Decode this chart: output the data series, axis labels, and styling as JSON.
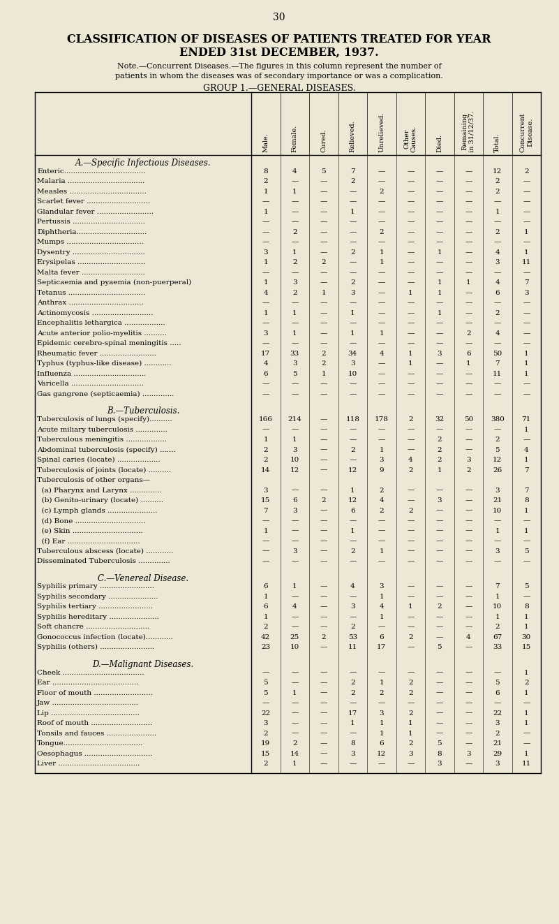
{
  "page_number": "30",
  "title_line1": "CLASSIFICATION OF DISEASES OF PATIENTS TREATED FOR YEAR",
  "title_line2": "ENDED 31st DECEMBER, 1937.",
  "note_line1": "Note.—Concurrent Diseases.—The figures in this column represent the number of",
  "note_line2": "patients in whom the diseases was of secondary importance or was a complication.",
  "group_header": "GROUP 1.—GENERAL DISEASES.",
  "columns": [
    "Male.",
    "Female.",
    "Cured.",
    "Relieved.",
    "Unrelieved.",
    "Other\nCauses.",
    "Died.",
    "Remaining\nin 31/12/37.",
    "Total.",
    "Concurrent\nDisease."
  ],
  "sections": [
    {
      "header": "A.—Specific Infectious Diseases.",
      "header_italic": true,
      "rows": [
        {
          "label": "Enteric....................................",
          "data": [
            "8",
            "4",
            "5",
            "7",
            "—",
            "—",
            "—",
            "—",
            "12",
            "2"
          ]
        },
        {
          "label": "Malaria ..................................",
          "data": [
            "2",
            "—",
            "—",
            "2",
            "—",
            "—",
            "—",
            "—",
            "2",
            "—"
          ]
        },
        {
          "label": "Measles ..................................",
          "data": [
            "1",
            "1",
            "—",
            "—",
            "2",
            "—",
            "—",
            "—",
            "2",
            "—"
          ]
        },
        {
          "label": "Scarlet fever ............................",
          "data": [
            "—",
            "—",
            "—",
            "—",
            "—",
            "—",
            "—",
            "—",
            "—",
            "—"
          ]
        },
        {
          "label": "Glandular fever .........................",
          "data": [
            "1",
            "—",
            "—",
            "1",
            "—",
            "—",
            "—",
            "—",
            "1",
            "—"
          ]
        },
        {
          "label": "Pertussis ................................",
          "data": [
            "—",
            "—",
            "—",
            "—",
            "—",
            "—",
            "—",
            "—",
            "—",
            "—"
          ]
        },
        {
          "label": "Diphtheria...............................",
          "data": [
            "—",
            "2",
            "—",
            "—",
            "2",
            "—",
            "—",
            "—",
            "2",
            "1"
          ]
        },
        {
          "label": "Mumps ..................................",
          "data": [
            "—",
            "—",
            "—",
            "—",
            "—",
            "—",
            "—",
            "—",
            "—",
            "—"
          ]
        },
        {
          "label": "Dysentry ................................",
          "data": [
            "3",
            "1",
            "—",
            "2",
            "1",
            "—",
            "1",
            "—",
            "4",
            "1"
          ]
        },
        {
          "label": "Erysipelas ..............................",
          "data": [
            "1",
            "2",
            "2",
            "—",
            "1",
            "—",
            "—",
            "—",
            "3",
            "11"
          ]
        },
        {
          "label": "Malta fever ............................",
          "data": [
            "—",
            "—",
            "—",
            "—",
            "—",
            "—",
            "—",
            "—",
            "—",
            "—"
          ]
        },
        {
          "label": "Septicaemia and pyaemia (non-puerperal)",
          "data": [
            "1",
            "3",
            "—",
            "2",
            "—",
            "—",
            "1",
            "1",
            "4",
            "7"
          ]
        },
        {
          "label": "Tetanus ..................................",
          "data": [
            "4",
            "2",
            "1",
            "3",
            "—",
            "1",
            "1",
            "—",
            "6",
            "3"
          ]
        },
        {
          "label": "Anthrax .................................",
          "data": [
            "—",
            "—",
            "—",
            "—",
            "—",
            "—",
            "—",
            "—",
            "—",
            "—"
          ]
        },
        {
          "label": "Actinomycosis ...........................",
          "data": [
            "1",
            "1",
            "—",
            "1",
            "—",
            "—",
            "1",
            "—",
            "2",
            "—"
          ]
        },
        {
          "label": "Encephalitis lethargica ..................",
          "data": [
            "—",
            "—",
            "—",
            "—",
            "—",
            "—",
            "—",
            "—",
            "—",
            "—"
          ]
        },
        {
          "label": "Acute anterior polio-myelitis ..........",
          "data": [
            "3",
            "1",
            "—",
            "1",
            "1",
            "—",
            "—",
            "2",
            "4",
            "—"
          ]
        },
        {
          "label": "Epidemic cerebro-spinal meningitis .....",
          "data": [
            "—",
            "—",
            "—",
            "—",
            "—",
            "—",
            "—",
            "—",
            "—",
            "—"
          ]
        },
        {
          "label": "Rheumatic fever .........................",
          "data": [
            "17",
            "33",
            "2",
            "34",
            "4",
            "1",
            "3",
            "6",
            "50",
            "1"
          ]
        },
        {
          "label": "Typhus (typhus-like disease) ............",
          "data": [
            "4",
            "3",
            "2",
            "3",
            "—",
            "1",
            "—",
            "1",
            "7",
            "1"
          ]
        },
        {
          "label": "Influenza ................................",
          "data": [
            "6",
            "5",
            "1",
            "10",
            "—",
            "—",
            "—",
            "—",
            "11",
            "1"
          ]
        },
        {
          "label": "Varicella ................................",
          "data": [
            "—",
            "—",
            "—",
            "—",
            "—",
            "—",
            "—",
            "—",
            "—",
            "—"
          ]
        },
        {
          "label": "Gas gangrene (septicaemia) ..............",
          "data": [
            "—",
            "—",
            "—",
            "—",
            "—",
            "—",
            "—",
            "—",
            "—",
            "—"
          ]
        }
      ]
    },
    {
      "header": "B.—Tuberculosis.",
      "header_italic": true,
      "rows": [
        {
          "label": "Tuberculosis of lungs (specify)..........",
          "data": [
            "166",
            "214",
            "—",
            "118",
            "178",
            "2",
            "32",
            "50",
            "380",
            "71"
          ]
        },
        {
          "label": "Acute miliary tuberculosis ..............",
          "data": [
            "—",
            "—",
            "—",
            "—",
            "—",
            "—",
            "—",
            "—",
            "—",
            "1"
          ]
        },
        {
          "label": "Tuberculous meningitis ..................",
          "data": [
            "1",
            "1",
            "—",
            "—",
            "—",
            "—",
            "2",
            "—",
            "2",
            "—"
          ]
        },
        {
          "label": "Abdominal tuberculosis (specify) .......",
          "data": [
            "2",
            "3",
            "—",
            "2",
            "1",
            "—",
            "2",
            "—",
            "5",
            "4"
          ]
        },
        {
          "label": "Spinal caries (locate) ...................",
          "data": [
            "2",
            "10",
            "—",
            "—",
            "3",
            "4",
            "2",
            "3",
            "12",
            "1"
          ]
        },
        {
          "label": "Tuberculosis of joints (locate) ..........",
          "data": [
            "14",
            "12",
            "—",
            "12",
            "9",
            "2",
            "1",
            "2",
            "26",
            "7"
          ]
        },
        {
          "label": "Tuberculosis of other organs—",
          "data": [
            "",
            "",
            "",
            "",
            "",
            "",
            "",
            "",
            "",
            ""
          ]
        },
        {
          "label": "  (a) Pharynx and Larynx ..............",
          "data": [
            "3",
            "—",
            "—",
            "1",
            "2",
            "—",
            "—",
            "—",
            "3",
            "7"
          ]
        },
        {
          "label": "  (b) Genito-urinary (locate) ..........",
          "data": [
            "15",
            "6",
            "2",
            "12",
            "4",
            "—",
            "3",
            "—",
            "21",
            "8"
          ]
        },
        {
          "label": "  (c) Lymph glands ......................",
          "data": [
            "7",
            "3",
            "—",
            "6",
            "2",
            "2",
            "—",
            "—",
            "10",
            "1"
          ]
        },
        {
          "label": "  (d) Bone ...............................",
          "data": [
            "—",
            "—",
            "—",
            "—",
            "—",
            "—",
            "—",
            "—",
            "—",
            "—"
          ]
        },
        {
          "label": "  (e) Skin ...............................",
          "data": [
            "1",
            "—",
            "—",
            "1",
            "—",
            "—",
            "—",
            "—",
            "1",
            "1"
          ]
        },
        {
          "label": "  (f) Ear ................................",
          "data": [
            "—",
            "—",
            "—",
            "—",
            "—",
            "—",
            "—",
            "—",
            "—",
            "—"
          ]
        },
        {
          "label": "Tuberculous abscess (locate) ............",
          "data": [
            "—",
            "3",
            "—",
            "2",
            "1",
            "—",
            "—",
            "—",
            "3",
            "5"
          ]
        },
        {
          "label": "Disseminated Tuberculosis ..............",
          "data": [
            "—",
            "—",
            "—",
            "—",
            "—",
            "—",
            "—",
            "—",
            "—",
            "—"
          ]
        }
      ]
    },
    {
      "header": "C.—Venereal Disease.",
      "header_italic": true,
      "rows": [
        {
          "label": "Syphilis primary ........................",
          "data": [
            "6",
            "1",
            "—",
            "4",
            "3",
            "—",
            "—",
            "—",
            "7",
            "5"
          ]
        },
        {
          "label": "Syphilis secondary ......................",
          "data": [
            "1",
            "—",
            "—",
            "—",
            "1",
            "—",
            "—",
            "—",
            "1",
            "—"
          ]
        },
        {
          "label": "Syphilis tertiary ........................",
          "data": [
            "6",
            "4",
            "—",
            "3",
            "4",
            "1",
            "2",
            "—",
            "10",
            "8"
          ]
        },
        {
          "label": "Syphilis hereditary ......................",
          "data": [
            "1",
            "—",
            "—",
            "—",
            "1",
            "—",
            "—",
            "—",
            "1",
            "1"
          ]
        },
        {
          "label": "Soft chancre ............................",
          "data": [
            "2",
            "—",
            "—",
            "2",
            "—",
            "—",
            "—",
            "—",
            "2",
            "1"
          ]
        },
        {
          "label": "Gonococcus infection (locate)............",
          "data": [
            "42",
            "25",
            "2",
            "53",
            "6",
            "2",
            "—",
            "4",
            "67",
            "30"
          ]
        },
        {
          "label": "Syphilis (others) ........................",
          "data": [
            "23",
            "10",
            "—",
            "11",
            "17",
            "—",
            "5",
            "—",
            "33",
            "15"
          ]
        }
      ]
    },
    {
      "header": "D.—Malignant Diseases.",
      "header_italic": true,
      "rows": [
        {
          "label": "Cheek ....................................",
          "data": [
            "—",
            "—",
            "—",
            "—",
            "—",
            "—",
            "—",
            "—",
            "—",
            "1"
          ]
        },
        {
          "label": "Ear ......................................",
          "data": [
            "5",
            "—",
            "—",
            "2",
            "1",
            "2",
            "—",
            "—",
            "5",
            "2"
          ]
        },
        {
          "label": "Floor of mouth ..........................",
          "data": [
            "5",
            "1",
            "—",
            "2",
            "2",
            "2",
            "—",
            "—",
            "6",
            "1"
          ]
        },
        {
          "label": "Jaw ......................................",
          "data": [
            "—",
            "—",
            "—",
            "—",
            "—",
            "—",
            "—",
            "—",
            "—",
            "—"
          ]
        },
        {
          "label": "Lip .......................................",
          "data": [
            "22",
            "—",
            "—",
            "17",
            "3",
            "2",
            "—",
            "—",
            "22",
            "1"
          ]
        },
        {
          "label": "Roof of mouth ...........................",
          "data": [
            "3",
            "—",
            "—",
            "1",
            "1",
            "1",
            "—",
            "—",
            "3",
            "1"
          ]
        },
        {
          "label": "Tonsils and fauces ......................",
          "data": [
            "2",
            "—",
            "—",
            "—",
            "1",
            "1",
            "—",
            "—",
            "2",
            "—"
          ]
        },
        {
          "label": "Tongue...................................",
          "data": [
            "19",
            "2",
            "—",
            "8",
            "6",
            "2",
            "5",
            "—",
            "21",
            "—"
          ]
        },
        {
          "label": "Oesophagus ..............................",
          "data": [
            "15",
            "14",
            "—",
            "3",
            "12",
            "3",
            "8",
            "3",
            "29",
            "1"
          ]
        },
        {
          "label": "Liver ....................................",
          "data": [
            "2",
            "1",
            "—",
            "—",
            "—",
            "—",
            "3",
            "—",
            "3",
            "11"
          ]
        }
      ]
    }
  ],
  "bg_color": "#ede8d5",
  "text_color": "#000000"
}
